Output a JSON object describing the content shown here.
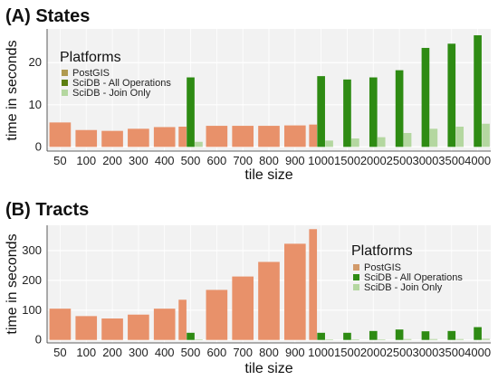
{
  "chart_data": [
    {
      "type": "bar",
      "title": "(A) States",
      "xlabel": "tile size",
      "ylabel": "time in seconds",
      "ylim": [
        -1,
        28
      ],
      "yticks": [
        0,
        10,
        20
      ],
      "categories": [
        "50",
        "100",
        "200",
        "300",
        "400",
        "500",
        "600",
        "700",
        "800",
        "900",
        "1000",
        "1500",
        "2000",
        "2500",
        "3000",
        "3500",
        "4000"
      ],
      "grid": true,
      "legend": {
        "title": "Platforms",
        "placement": "top-left",
        "entries": [
          "PostGIS",
          "SciDB - All Operations",
          "SciDB - Join Only"
        ]
      },
      "series": [
        {
          "name": "PostGIS",
          "color": "#E8916A",
          "values": [
            5.8,
            4.0,
            3.8,
            4.3,
            4.7,
            4.8,
            5.0,
            5.0,
            5.0,
            5.1,
            5.3,
            null,
            null,
            null,
            null,
            null,
            null
          ]
        },
        {
          "name": "SciDB - All Operations",
          "color": "#2E8B13",
          "values": [
            null,
            null,
            null,
            null,
            null,
            16.5,
            null,
            null,
            null,
            null,
            16.8,
            16.0,
            16.5,
            18.2,
            23.5,
            24.5,
            26.5
          ]
        },
        {
          "name": "SciDB - Join Only",
          "color": "#B4D7A0",
          "values": [
            null,
            null,
            null,
            null,
            null,
            1.2,
            null,
            null,
            null,
            null,
            1.5,
            2.0,
            2.3,
            3.3,
            4.3,
            4.8,
            5.5
          ]
        }
      ]
    },
    {
      "type": "bar",
      "title": "(B) Tracts",
      "xlabel": "tile size",
      "ylabel": "time in seconds",
      "ylim": [
        -10,
        385
      ],
      "yticks": [
        0,
        100,
        200,
        300
      ],
      "categories": [
        "50",
        "100",
        "200",
        "300",
        "400",
        "500",
        "600",
        "700",
        "800",
        "900",
        "1000",
        "1500",
        "2000",
        "2500",
        "3000",
        "3500",
        "4000"
      ],
      "grid": true,
      "legend": {
        "title": "Platforms",
        "placement": "right",
        "entries": [
          "PostGIS",
          "SciDB - All Operations",
          "SciDB - Join Only"
        ]
      },
      "series": [
        {
          "name": "PostGIS",
          "color": "#E8916A",
          "values": [
            105,
            80,
            72,
            85,
            105,
            135,
            168,
            213,
            262,
            323,
            372,
            null,
            null,
            null,
            null,
            null,
            null
          ]
        },
        {
          "name": "SciDB - All Operations",
          "color": "#2E8B13",
          "values": [
            null,
            null,
            null,
            null,
            null,
            24,
            null,
            null,
            null,
            null,
            24,
            24,
            30,
            35,
            29,
            30,
            43
          ]
        },
        {
          "name": "SciDB - Join Only",
          "color": "#B4D7A0",
          "values": [
            null,
            null,
            null,
            null,
            null,
            2,
            null,
            null,
            null,
            null,
            2,
            2,
            2,
            3,
            3,
            3,
            4
          ]
        }
      ]
    }
  ]
}
